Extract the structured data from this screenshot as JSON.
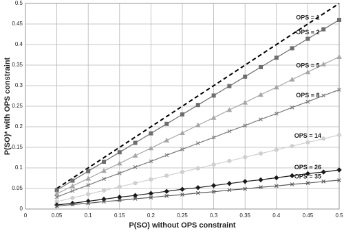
{
  "chart_data": {
    "type": "line",
    "xlabel": "P(SO) without OPS constraint",
    "ylabel": "P(SO)* with OPS constraint",
    "x": [
      0.05,
      0.075,
      0.1,
      0.125,
      0.15,
      0.175,
      0.2,
      0.225,
      0.25,
      0.275,
      0.3,
      0.325,
      0.35,
      0.375,
      0.4,
      0.425,
      0.45,
      0.475,
      0.5
    ],
    "series": [
      {
        "name": "OPS = 1",
        "color": "#000000",
        "marker": "none",
        "dashed": true,
        "values": [
          0.05,
          0.075,
          0.1,
          0.125,
          0.15,
          0.175,
          0.2,
          0.225,
          0.25,
          0.275,
          0.3,
          0.325,
          0.35,
          0.375,
          0.4,
          0.425,
          0.45,
          0.475,
          0.5
        ]
      },
      {
        "name": "OPS = 2",
        "color": "#6e6e6e",
        "marker": "square",
        "dashed": false,
        "values": [
          0.046,
          0.069,
          0.092,
          0.115,
          0.138,
          0.161,
          0.184,
          0.207,
          0.23,
          0.253,
          0.276,
          0.299,
          0.322,
          0.345,
          0.368,
          0.391,
          0.414,
          0.437,
          0.46
        ]
      },
      {
        "name": "OPS = 5",
        "color": "#a6a6a6",
        "marker": "triangle",
        "dashed": false,
        "values": [
          0.037,
          0.056,
          0.074,
          0.093,
          0.111,
          0.13,
          0.148,
          0.167,
          0.185,
          0.204,
          0.222,
          0.241,
          0.259,
          0.278,
          0.296,
          0.315,
          0.333,
          0.352,
          0.37
        ]
      },
      {
        "name": "OPS = 8",
        "color": "#7a7a7a",
        "marker": "x",
        "dashed": false,
        "values": [
          0.029,
          0.044,
          0.058,
          0.073,
          0.087,
          0.102,
          0.116,
          0.131,
          0.145,
          0.16,
          0.174,
          0.189,
          0.203,
          0.218,
          0.232,
          0.247,
          0.261,
          0.276,
          0.29
        ]
      },
      {
        "name": "OPS = 14",
        "color": "#cfcfcf",
        "marker": "circle",
        "dashed": false,
        "values": [
          0.018,
          0.027,
          0.036,
          0.045,
          0.054,
          0.063,
          0.072,
          0.081,
          0.09,
          0.099,
          0.108,
          0.117,
          0.126,
          0.135,
          0.144,
          0.153,
          0.162,
          0.171,
          0.18
        ]
      },
      {
        "name": "OPS = 26",
        "color": "#1a1a1a",
        "marker": "diamond",
        "dashed": false,
        "values": [
          0.01,
          0.014,
          0.019,
          0.024,
          0.029,
          0.033,
          0.038,
          0.043,
          0.048,
          0.052,
          0.057,
          0.062,
          0.067,
          0.071,
          0.076,
          0.081,
          0.086,
          0.09,
          0.095
        ]
      },
      {
        "name": "OPS = 35",
        "color": "#5a5a5a",
        "marker": "x",
        "dashed": false,
        "values": [
          0.007,
          0.011,
          0.014,
          0.018,
          0.021,
          0.025,
          0.028,
          0.032,
          0.035,
          0.039,
          0.042,
          0.046,
          0.049,
          0.053,
          0.056,
          0.06,
          0.063,
          0.067,
          0.07
        ]
      }
    ],
    "xlim": [
      0,
      0.5
    ],
    "xticks": [
      0,
      0.05,
      0.1,
      0.15,
      0.2,
      0.25,
      0.3,
      0.35,
      0.4,
      0.45,
      0.5
    ],
    "ylim": [
      0,
      0.5
    ],
    "yticks": [
      0,
      0.05,
      0.1,
      0.15,
      0.2,
      0.25,
      0.3,
      0.35,
      0.4,
      0.45,
      0.5
    ],
    "grid": true
  }
}
